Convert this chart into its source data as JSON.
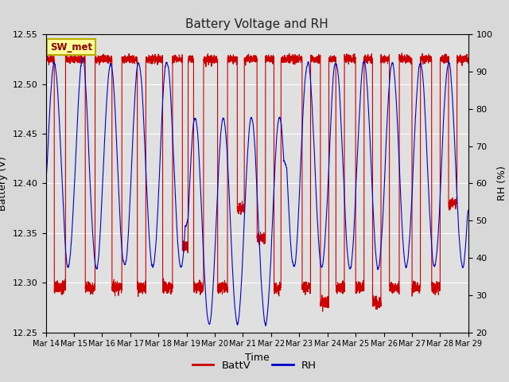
{
  "title": "Battery Voltage and RH",
  "xlabel": "Time",
  "ylabel_left": "Battery (V)",
  "ylabel_right": "RH (%)",
  "station_label": "SW_met",
  "batt_ylim": [
    12.25,
    12.55
  ],
  "rh_ylim": [
    20,
    100
  ],
  "batt_yticks": [
    12.25,
    12.3,
    12.35,
    12.4,
    12.45,
    12.5,
    12.55
  ],
  "rh_yticks": [
    20,
    30,
    40,
    50,
    60,
    70,
    80,
    90,
    100
  ],
  "x_tick_labels": [
    "Mar 14",
    "Mar 15",
    "Mar 16",
    "Mar 17",
    "Mar 18",
    "Mar 19",
    "Mar 20",
    "Mar 21",
    "Mar 22",
    "Mar 23",
    "Mar 24",
    "Mar 25",
    "Mar 26",
    "Mar 27",
    "Mar 28",
    "Mar 29"
  ],
  "batt_color": "#cc0000",
  "rh_color": "#0000cc",
  "bg_color": "#d8d8d8",
  "plot_bg_color": "#e0e0e0",
  "legend_batt": "BattV",
  "legend_rh": "RH"
}
